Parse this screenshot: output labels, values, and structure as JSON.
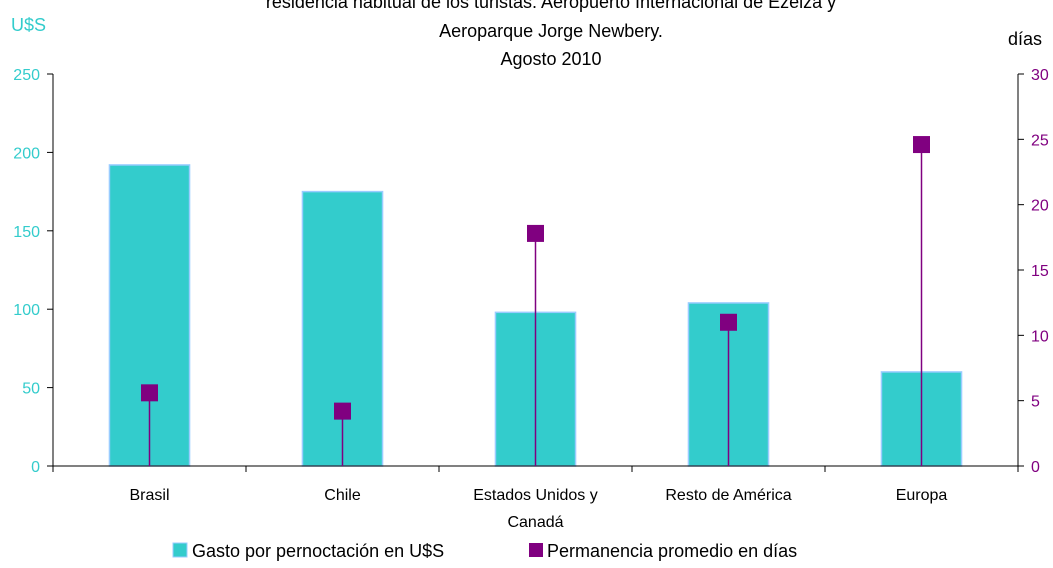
{
  "chart_data": {
    "type": "bar",
    "title_lines": [
      "residencia habitual de los turistas. Aeropuerto Internacional de Ezeiza y",
      "Aeroparque Jorge Newbery.",
      "Agosto 2010"
    ],
    "left_axis_unit": "U$S",
    "right_axis_unit": "días",
    "categories": [
      [
        "Brasil"
      ],
      [
        "Chile"
      ],
      [
        "Estados Unidos y",
        "Canadá"
      ],
      [
        "Resto de América"
      ],
      [
        "Europa"
      ]
    ],
    "series": [
      {
        "name": "Gasto por pernoctación en U$S",
        "kind": "bar",
        "axis": "left",
        "color": "#33cccc",
        "border": "#99ccff",
        "values": [
          192,
          175,
          98,
          104,
          60
        ]
      },
      {
        "name": "Permanencia promedio en días",
        "kind": "marker-drop-line",
        "axis": "right",
        "color": "#800080",
        "values": [
          5.6,
          4.2,
          17.8,
          11.0,
          24.6
        ]
      }
    ],
    "left_axis": {
      "min": 0,
      "max": 250,
      "ticks": [
        "0",
        "50",
        "100",
        "150",
        "200",
        "250"
      ],
      "color": "#33cccc"
    },
    "right_axis": {
      "min": 0,
      "max": 30,
      "ticks": [
        "0",
        "5",
        "10",
        "15",
        "20",
        "25",
        "30"
      ],
      "color": "#800080"
    },
    "grid": false,
    "legend_position": "bottom"
  }
}
